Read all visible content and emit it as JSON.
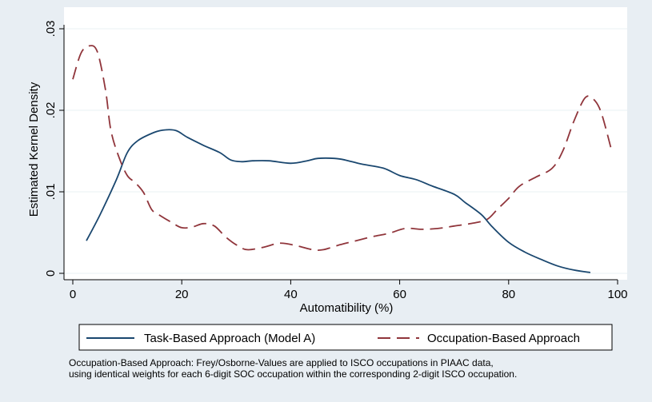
{
  "chart_data": {
    "type": "line",
    "xlabel": "Automatibility (%)",
    "ylabel": "Estimated Kernel Density",
    "xlim": [
      0,
      100
    ],
    "ylim": [
      0,
      0.03
    ],
    "x_ticks": [
      "0",
      "20",
      "40",
      "60",
      "80",
      "100"
    ],
    "y_ticks": [
      "0",
      ".01",
      ".02",
      ".03"
    ],
    "grid": "horizontal",
    "legend_position": "bottom",
    "series": [
      {
        "name": "Task-Based Approach (Model A)",
        "color": "#1a476f",
        "dash": "solid",
        "points": [
          [
            2.5,
            0.004
          ],
          [
            5,
            0.0072
          ],
          [
            8,
            0.0115
          ],
          [
            10,
            0.0148
          ],
          [
            12,
            0.0163
          ],
          [
            15,
            0.0173
          ],
          [
            17,
            0.0176
          ],
          [
            19,
            0.0175
          ],
          [
            21,
            0.0167
          ],
          [
            24,
            0.0157
          ],
          [
            27,
            0.0148
          ],
          [
            29,
            0.0139
          ],
          [
            31,
            0.0137
          ],
          [
            33,
            0.0138
          ],
          [
            36,
            0.0138
          ],
          [
            40,
            0.0135
          ],
          [
            43,
            0.0138
          ],
          [
            45,
            0.0141
          ],
          [
            48,
            0.0141
          ],
          [
            50,
            0.0139
          ],
          [
            53,
            0.0134
          ],
          [
            57,
            0.0129
          ],
          [
            60,
            0.012
          ],
          [
            63,
            0.0115
          ],
          [
            66,
            0.0107
          ],
          [
            70,
            0.0097
          ],
          [
            72,
            0.0087
          ],
          [
            75,
            0.0072
          ],
          [
            77,
            0.0057
          ],
          [
            80,
            0.0038
          ],
          [
            83,
            0.0026
          ],
          [
            86,
            0.0017
          ],
          [
            89,
            0.0009
          ],
          [
            92,
            0.0004
          ],
          [
            95,
            0.0001
          ]
        ]
      },
      {
        "name": "Occupation-Based Approach",
        "color": "#90353b",
        "dash": "long-dash",
        "points": [
          [
            0,
            0.0238
          ],
          [
            1.5,
            0.027
          ],
          [
            3,
            0.0279
          ],
          [
            4.5,
            0.0272
          ],
          [
            6,
            0.0225
          ],
          [
            7,
            0.0175
          ],
          [
            8.5,
            0.0142
          ],
          [
            10,
            0.012
          ],
          [
            11.5,
            0.0111
          ],
          [
            13,
            0.0099
          ],
          [
            14.5,
            0.0078
          ],
          [
            16,
            0.0071
          ],
          [
            18,
            0.0063
          ],
          [
            20,
            0.0056
          ],
          [
            22,
            0.0057
          ],
          [
            24,
            0.0061
          ],
          [
            26,
            0.0058
          ],
          [
            28,
            0.0045
          ],
          [
            30,
            0.0035
          ],
          [
            32,
            0.0029
          ],
          [
            35,
            0.0032
          ],
          [
            38,
            0.0037
          ],
          [
            41,
            0.0034
          ],
          [
            44,
            0.0029
          ],
          [
            46,
            0.0029
          ],
          [
            49,
            0.0035
          ],
          [
            52,
            0.004
          ],
          [
            55,
            0.0045
          ],
          [
            58,
            0.0049
          ],
          [
            61,
            0.0055
          ],
          [
            64,
            0.0054
          ],
          [
            67,
            0.0055
          ],
          [
            70,
            0.0058
          ],
          [
            73,
            0.0061
          ],
          [
            76,
            0.0066
          ],
          [
            78,
            0.0079
          ],
          [
            80,
            0.0092
          ],
          [
            82,
            0.0107
          ],
          [
            85,
            0.0118
          ],
          [
            88,
            0.0129
          ],
          [
            90,
            0.0151
          ],
          [
            92,
            0.0187
          ],
          [
            94,
            0.0215
          ],
          [
            95.5,
            0.0214
          ],
          [
            97,
            0.0197
          ],
          [
            99,
            0.0148
          ]
        ]
      }
    ]
  },
  "note": {
    "line1": "Occupation-Based Approach: Frey/Osborne-Values are applied to ISCO occupations in PIAAC data,",
    "line2": "using identical weights for each 6-digit SOC occupation within the corresponding 2-digit ISCO occupation."
  }
}
